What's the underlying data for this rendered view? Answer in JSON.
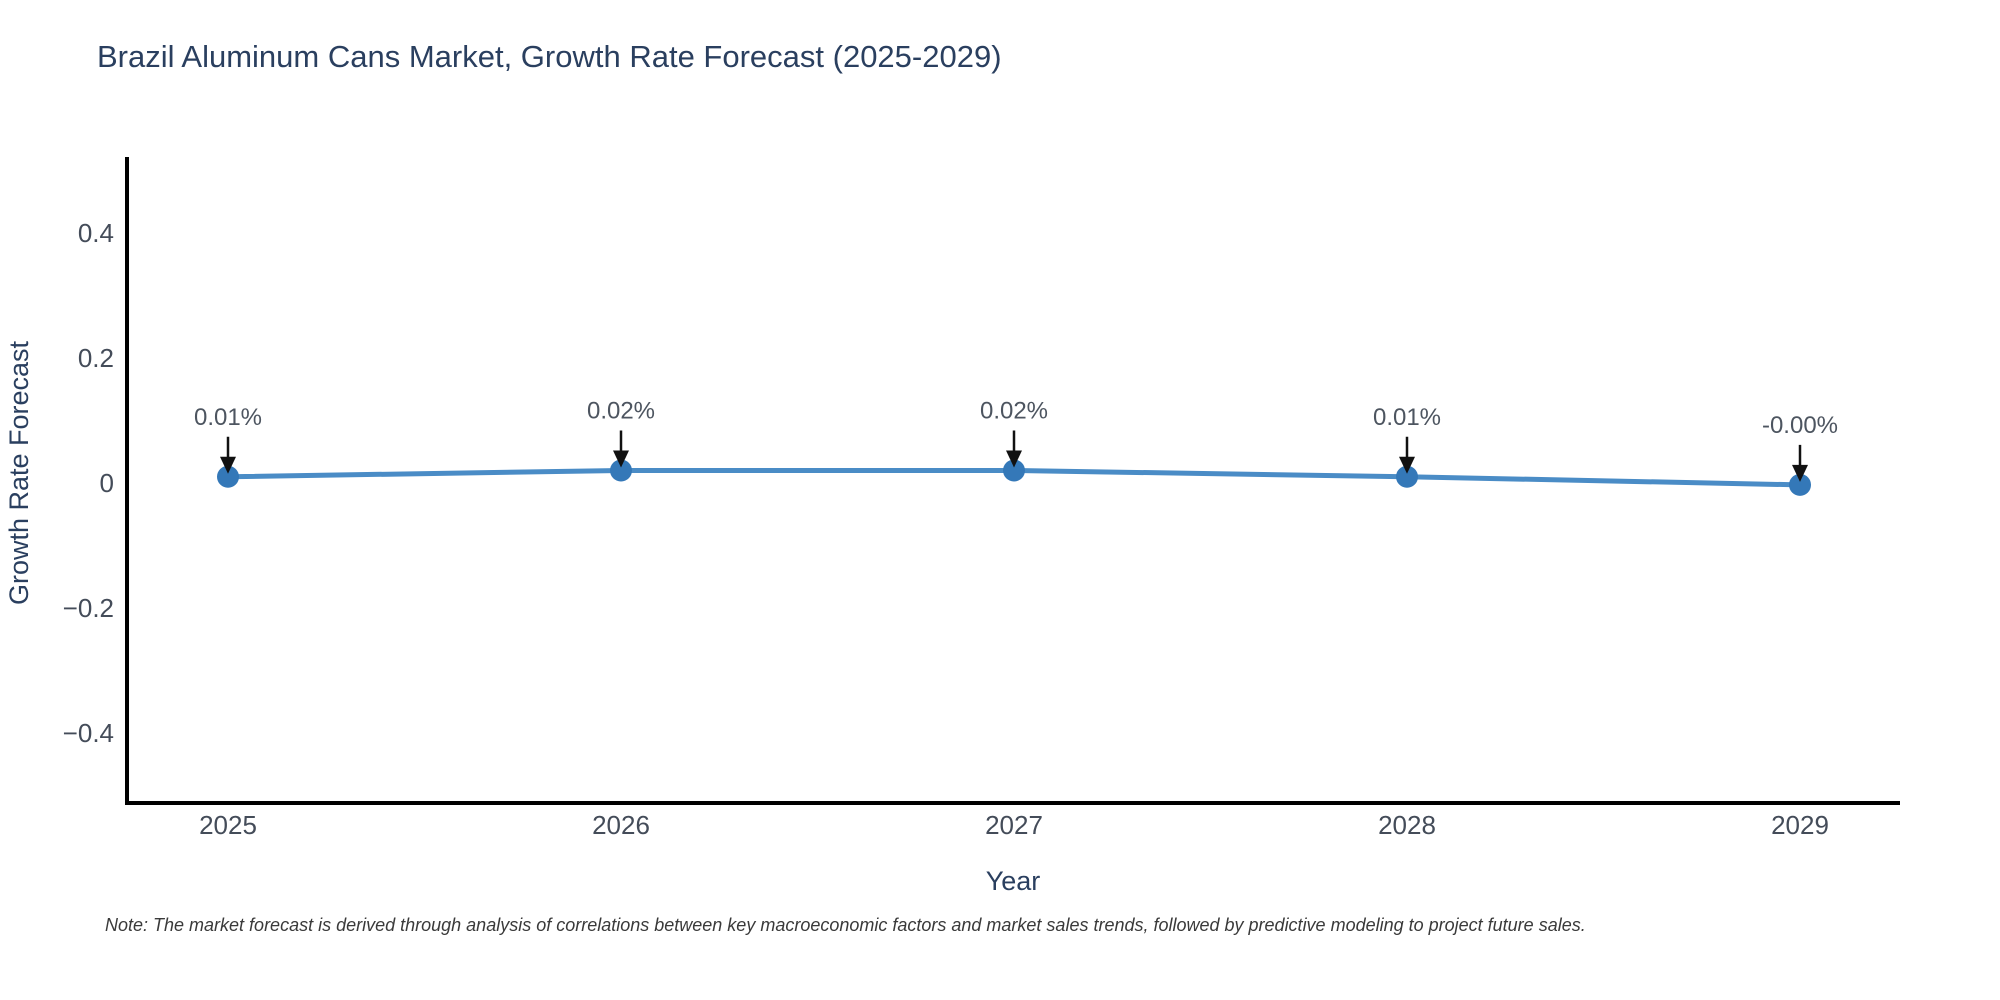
{
  "chart": {
    "title": "Brazil Aluminum Cans Market, Growth Rate Forecast (2025-2029)",
    "x_axis_title": "Year",
    "y_axis_title": "Growth Rate Forecast",
    "footnote": "Note: The market forecast is derived through analysis of correlations between key macroeconomic factors and market sales trends, followed by predictive modeling to project future sales."
  },
  "chart_data": {
    "type": "line",
    "title": "Brazil Aluminum Cans Market, Growth Rate Forecast (2025-2029)",
    "xlabel": "Year",
    "ylabel": "Growth Rate Forecast",
    "categories": [
      "2025",
      "2026",
      "2027",
      "2028",
      "2029"
    ],
    "values": [
      0.01,
      0.02,
      0.02,
      0.01,
      -0.003
    ],
    "point_labels": [
      "0.01%",
      "0.02%",
      "0.02%",
      "0.01%",
      "-0.00%"
    ],
    "ylim": [
      -0.51,
      0.52
    ],
    "ytick_values": [
      0.4,
      0.2,
      0,
      -0.2,
      -0.4
    ],
    "ytick_labels": [
      "0.4",
      "0.2",
      "0",
      "−0.2",
      "−0.4"
    ],
    "grid": false,
    "legend": "none",
    "line_color": "#4a8cc6",
    "marker_color": "#3478b8",
    "axis_color": "#000000",
    "arrow_color": "#111111",
    "tick_color": "#444c59",
    "annotation_color": "#4d5560",
    "title_color": "#2a3f5f",
    "note_color": "#3a3a3a"
  }
}
